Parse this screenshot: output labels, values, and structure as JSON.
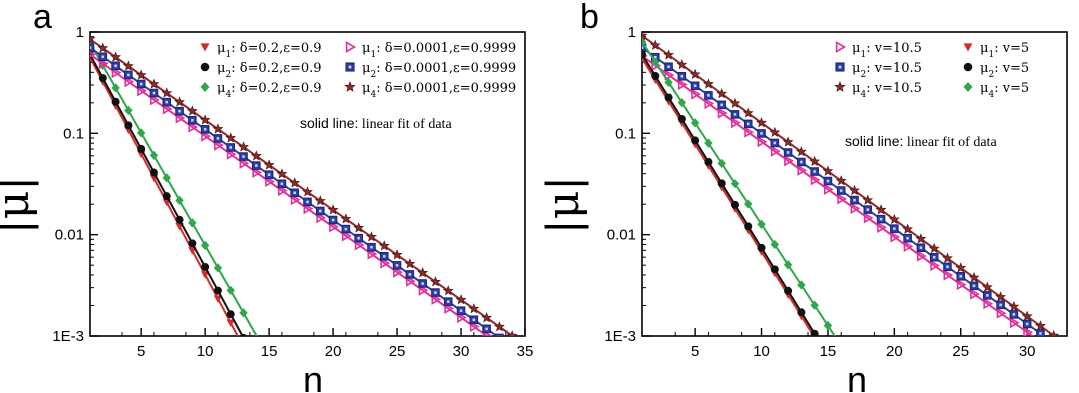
{
  "chart_data": [
    {
      "panel": "a",
      "type": "scatter",
      "yscale": "log",
      "xlim": [
        1,
        35
      ],
      "ylim": [
        0.001,
        1
      ],
      "xlabel": "n",
      "ylabel": "|μ|",
      "xticks": [
        5,
        10,
        15,
        20,
        25,
        30,
        35
      ],
      "yticks": [
        1,
        0.1,
        0.01,
        0.001
      ],
      "yticklabels": [
        "1",
        "0.1",
        "0.01",
        "1E-3"
      ],
      "note_strong": "solid line:",
      "note_plain": " linear fit of data",
      "legend_placement": "top-right",
      "series": [
        {
          "name": "μ1: δ=0.2,ε=0.9",
          "legend_sym": "μ",
          "legend_sub": "1",
          "legend_rest": ": δ=0.2,ε=0.9",
          "marker": "triangle-down",
          "color": "#d42a2a",
          "x_start": 1,
          "x_end": 13,
          "y0": 0.56,
          "slope": -0.238
        },
        {
          "name": "μ2: δ=0.2,ε=0.9",
          "legend_sym": "μ",
          "legend_sub": "2",
          "legend_rest": ": δ=0.2,ε=0.9",
          "marker": "circle",
          "color": "#111111",
          "x_start": 1,
          "x_end": 13,
          "y0": 0.6,
          "slope": -0.233
        },
        {
          "name": "μ4: δ=0.2,ε=0.9",
          "legend_sym": "μ",
          "legend_sub": "4",
          "legend_rest": ": δ=0.2,ε=0.9",
          "marker": "diamond",
          "color": "#2ea84a",
          "x_start": 1,
          "x_end": 13,
          "y0": 0.78,
          "slope": -0.222
        },
        {
          "name": "μ1: δ=0.0001,ε=0.9999",
          "legend_sym": "μ",
          "legend_sub": "1",
          "legend_rest": ": δ=0.0001,ε=0.9999",
          "marker": "triangle-right",
          "color": "#e0309a",
          "x_start": 1,
          "x_end": 33,
          "y0": 0.6,
          "slope": -0.0895
        },
        {
          "name": "μ2: δ=0.0001,ε=0.9999",
          "legend_sym": "μ",
          "legend_sub": "2",
          "legend_rest": ": δ=0.0001,ε=0.9999",
          "marker": "square",
          "color": "#2e3da3",
          "x_start": 1,
          "x_end": 33,
          "y0": 0.7,
          "slope": -0.0895
        },
        {
          "name": "μ4: δ=0.0001,ε=0.9999",
          "legend_sym": "μ",
          "legend_sub": "4",
          "legend_rest": ": δ=0.0001,ε=0.9999",
          "marker": "star",
          "color": "#8b2a2a",
          "x_start": 1,
          "x_end": 34,
          "y0": 0.85,
          "slope": -0.0887
        }
      ]
    },
    {
      "panel": "b",
      "type": "scatter",
      "yscale": "log",
      "xlim": [
        1,
        33
      ],
      "ylim": [
        0.001,
        1
      ],
      "xlabel": "n",
      "ylabel": "|μ|",
      "xticks": [
        5,
        10,
        15,
        20,
        25,
        30
      ],
      "yticks": [
        1,
        0.1,
        0.01,
        0.001
      ],
      "yticklabels": [
        "1",
        "0.1",
        "0.01",
        "1E-3"
      ],
      "note_strong": "solid line:",
      "note_plain": " linear fit of data",
      "legend_placement": "top-right",
      "series": [
        {
          "name": "μ1: v=10.5",
          "legend_sym": "μ",
          "legend_sub": "1",
          "legend_rest": ": v=10.5",
          "marker": "triangle-right",
          "color": "#e0309a",
          "x_start": 1,
          "x_end": 31,
          "y0": 0.58,
          "slope": -0.094
        },
        {
          "name": "μ2: v=10.5",
          "legend_sym": "μ",
          "legend_sub": "2",
          "legend_rest": ": v=10.5",
          "marker": "square",
          "color": "#2e3da3",
          "x_start": 1,
          "x_end": 31,
          "y0": 0.7,
          "slope": -0.094
        },
        {
          "name": "μ4: v=10.5",
          "legend_sym": "μ",
          "legend_sub": "4",
          "legend_rest": ": v=10.5",
          "marker": "star",
          "color": "#8b2a2a",
          "x_start": 1,
          "x_end": 32,
          "y0": 0.92,
          "slope": -0.0955
        },
        {
          "name": "μ1: v=5",
          "legend_sym": "μ",
          "legend_sub": "1",
          "legend_rest": ": v=5",
          "marker": "triangle-down",
          "color": "#d42a2a",
          "x_start": 1,
          "x_end": 14,
          "y0": 0.55,
          "slope": -0.212
        },
        {
          "name": "μ2: v=5",
          "legend_sym": "μ",
          "legend_sub": "2",
          "legend_rest": ": v=5",
          "marker": "circle",
          "color": "#111111",
          "x_start": 1,
          "x_end": 14,
          "y0": 0.6,
          "slope": -0.212
        },
        {
          "name": "μ4: v=5",
          "legend_sym": "μ",
          "legend_sub": "4",
          "legend_rest": ": v=5",
          "marker": "diamond",
          "color": "#2ea84a",
          "x_start": 1,
          "x_end": 15,
          "y0": 0.8,
          "slope": -0.2
        }
      ]
    }
  ]
}
